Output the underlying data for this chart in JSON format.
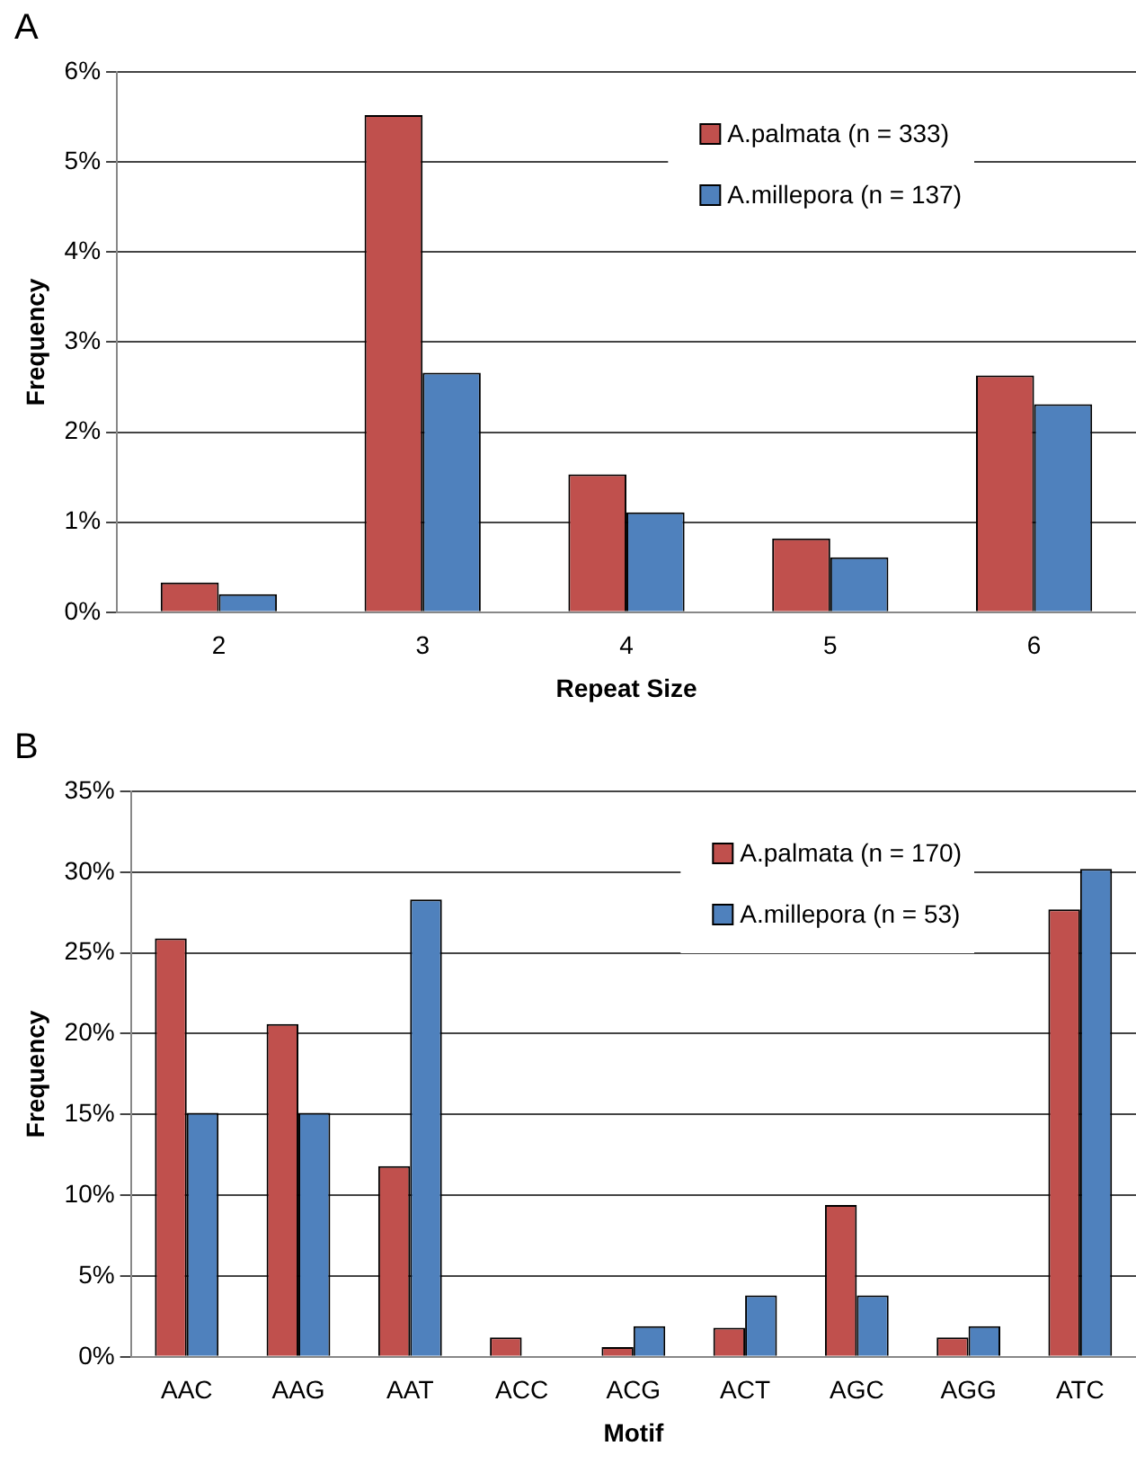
{
  "chart_data": [
    {
      "type": "bar",
      "title": "A",
      "xlabel": "Repeat Size",
      "ylabel": "Frequency",
      "categories": [
        "2",
        "3",
        "4",
        "5",
        "6"
      ],
      "series": [
        {
          "name": "A.palmata (n = 333)",
          "color": "#c0504d",
          "values": [
            0.33,
            5.52,
            1.53,
            0.82,
            2.63
          ]
        },
        {
          "name": "A.millepora (n = 137)",
          "color": "#4f81bd",
          "values": [
            0.2,
            2.66,
            1.11,
            0.61,
            2.31
          ]
        }
      ],
      "ylim": [
        0,
        6
      ],
      "yticks": [
        {
          "value": 0,
          "label": "0%"
        },
        {
          "value": 1,
          "label": "1%"
        },
        {
          "value": 2,
          "label": "2%"
        },
        {
          "value": 3,
          "label": "3%"
        },
        {
          "value": 4,
          "label": "4%"
        },
        {
          "value": 5,
          "label": "5%"
        },
        {
          "value": 6,
          "label": "6%"
        }
      ],
      "grid": "y",
      "legend": "top right"
    },
    {
      "type": "bar",
      "title": "B",
      "xlabel": "Motif",
      "ylabel": "Frequency",
      "categories": [
        "AAC",
        "AAG",
        "AAT",
        "ACC",
        "ACG",
        "ACT",
        "AGC",
        "AGG",
        "ATC"
      ],
      "series": [
        {
          "name": "A.palmata (n = 170)",
          "color": "#c0504d",
          "values": [
            25.9,
            20.6,
            11.8,
            1.2,
            0.6,
            1.8,
            9.4,
            1.2,
            27.7
          ]
        },
        {
          "name": "A.millepora (n = 53)",
          "color": "#4f81bd",
          "values": [
            15.1,
            15.1,
            28.3,
            0,
            1.9,
            3.8,
            3.8,
            1.9,
            30.2
          ]
        }
      ],
      "ylim": [
        0,
        35
      ],
      "yticks": [
        {
          "value": 0,
          "label": "0%"
        },
        {
          "value": 5,
          "label": "5%"
        },
        {
          "value": 10,
          "label": "10%"
        },
        {
          "value": 15,
          "label": "15%"
        },
        {
          "value": 20,
          "label": "20%"
        },
        {
          "value": 25,
          "label": "25%"
        },
        {
          "value": 30,
          "label": "30%"
        },
        {
          "value": 35,
          "label": "35%"
        }
      ],
      "grid": "y",
      "legend": "top right"
    }
  ]
}
